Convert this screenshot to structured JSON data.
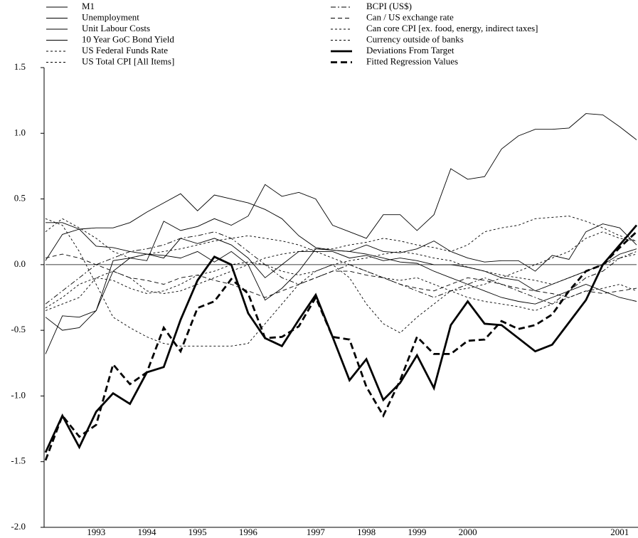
{
  "chart_data": {
    "type": "line",
    "categories": [
      null,
      null,
      null,
      "1993",
      null,
      null,
      "1994",
      null,
      null,
      "1995",
      null,
      null,
      "1996",
      null,
      null,
      null,
      "1997",
      null,
      null,
      "1998",
      null,
      null,
      "1999",
      null,
      null,
      "2000",
      null,
      null,
      null,
      null,
      null,
      null,
      null,
      null,
      "2001",
      null
    ],
    "ylim": [
      -2,
      1.5
    ],
    "yticks": [
      {
        "value": -2,
        "label": "-2.0"
      },
      -1.5,
      {
        "value": -1,
        "label": "-1.0"
      },
      -0.5,
      {
        "value": 0,
        "label": "0.0"
      },
      0.5,
      {
        "value": 1,
        "label": "1.0"
      },
      1.5
    ],
    "zero_line": true,
    "legend": "top",
    "series": [
      {
        "name": "M1",
        "color": "#000000",
        "style": "solid",
        "values": [
          -0.68,
          -0.39,
          -0.4,
          -0.35,
          -0.05,
          0.05,
          0.03,
          0.33,
          0.26,
          0.29,
          0.35,
          0.3,
          0.37,
          0.61,
          0.52,
          0.55,
          0.5,
          0.3,
          0.25,
          0.2,
          0.38,
          0.38,
          0.26,
          0.38,
          0.73,
          0.65,
          0.67,
          0.88,
          0.98,
          1.03,
          1.03,
          1.04,
          1.15,
          1.14,
          1.05,
          0.95
        ]
      },
      {
        "name": "Unemployment",
        "color": "#000000",
        "style": "solid",
        "values": [
          0.03,
          0.23,
          0.27,
          0.14,
          0.13,
          0.1,
          0.08,
          0.05,
          0.2,
          0.16,
          0.2,
          0.15,
          0.05,
          -0.1,
          0.0,
          0.1,
          0.1,
          0.1,
          0.05,
          0.07,
          0.03,
          0.05,
          0.03,
          0.0,
          0.0,
          -0.02,
          -0.05,
          -0.1,
          -0.12,
          -0.2,
          -0.15,
          -0.1,
          -0.05,
          0.0,
          0.08,
          0.12
        ]
      },
      {
        "name": "Unit Labour Costs",
        "color": "#000000",
        "style": "solid",
        "values": [
          0.32,
          0.32,
          0.27,
          0.28,
          0.28,
          0.32,
          0.4,
          0.47,
          0.54,
          0.41,
          0.53,
          0.5,
          0.47,
          0.42,
          0.35,
          0.22,
          0.13,
          0.11,
          0.1,
          0.08,
          0.05,
          0.02,
          0.01,
          -0.05,
          -0.1,
          -0.15,
          -0.2,
          -0.25,
          -0.28,
          -0.3,
          -0.25,
          -0.2,
          -0.15,
          -0.2,
          -0.25,
          -0.28
        ]
      },
      {
        "name": "10 Year GoC Bond Yield",
        "color": "#000000",
        "style": "solid",
        "values": [
          -0.4,
          -0.5,
          -0.48,
          -0.35,
          0.03,
          0.05,
          0.08,
          0.07,
          0.05,
          0.1,
          0.02,
          0.1,
          0.0,
          -0.27,
          -0.18,
          -0.05,
          0.12,
          0.11,
          0.1,
          0.15,
          0.1,
          0.09,
          0.12,
          0.18,
          0.1,
          0.05,
          0.02,
          0.03,
          0.03,
          -0.05,
          0.07,
          0.04,
          0.25,
          0.31,
          0.28,
          0.15
        ]
      },
      {
        "name": "US Federal Funds Rate",
        "color": "#000000",
        "style": "dotted",
        "values": [
          -0.35,
          -0.3,
          -0.25,
          -0.1,
          -0.05,
          -0.1,
          -0.2,
          -0.22,
          -0.2,
          -0.15,
          -0.1,
          -0.05,
          0.0,
          0.05,
          0.08,
          0.1,
          0.12,
          0.12,
          0.15,
          0.17,
          0.2,
          0.18,
          0.15,
          0.13,
          0.1,
          0.15,
          0.25,
          0.28,
          0.3,
          0.35,
          0.36,
          0.37,
          0.33,
          0.28,
          0.22,
          0.18
        ]
      },
      {
        "name": "US Total CPI [All Items]",
        "color": "#000000",
        "style": "dotted",
        "values": [
          0.35,
          0.3,
          0.1,
          -0.15,
          -0.4,
          -0.48,
          -0.55,
          -0.6,
          -0.62,
          -0.62,
          -0.62,
          -0.62,
          -0.6,
          -0.45,
          -0.3,
          -0.15,
          -0.05,
          0.0,
          -0.1,
          -0.3,
          -0.45,
          -0.52,
          -0.4,
          -0.3,
          -0.2,
          -0.18,
          -0.15,
          -0.1,
          -0.05,
          0.0,
          0.05,
          0.1,
          0.2,
          0.25,
          0.2,
          0.18
        ]
      },
      {
        "name": "BCPI (US$)",
        "color": "#000000",
        "style": "dash-dot",
        "values": [
          -0.3,
          -0.2,
          -0.1,
          0.0,
          0.05,
          0.1,
          0.12,
          0.15,
          0.2,
          0.22,
          0.25,
          0.2,
          0.1,
          0.0,
          -0.1,
          -0.15,
          -0.1,
          -0.05,
          0.0,
          -0.05,
          -0.1,
          -0.15,
          -0.2,
          -0.25,
          -0.2,
          -0.15,
          -0.1,
          -0.15,
          -0.2,
          -0.25,
          -0.3,
          -0.2,
          -0.1,
          -0.05,
          0.05,
          0.1
        ]
      },
      {
        "name": "Can / US exchange rate",
        "color": "#000000",
        "style": "dashed",
        "values": [
          0.05,
          0.08,
          0.05,
          0.0,
          -0.05,
          -0.1,
          -0.12,
          -0.15,
          -0.1,
          -0.08,
          -0.12,
          -0.15,
          -0.2,
          -0.25,
          -0.2,
          -0.15,
          -0.1,
          -0.05,
          -0.05,
          -0.08,
          -0.1,
          -0.15,
          -0.18,
          -0.2,
          -0.15,
          -0.1,
          -0.12,
          -0.15,
          -0.18,
          -0.2,
          -0.22,
          -0.25,
          -0.2,
          -0.22,
          -0.2,
          -0.18
        ]
      },
      {
        "name": "Can core CPI [ex. food, energy, indirect taxes]",
        "color": "#000000",
        "style": "dotted",
        "values": [
          0.25,
          0.35,
          0.28,
          0.2,
          0.1,
          0.05,
          0.08,
          0.1,
          0.12,
          0.15,
          0.18,
          0.2,
          0.22,
          0.2,
          0.18,
          0.15,
          0.1,
          0.05,
          0.0,
          -0.05,
          -0.1,
          -0.12,
          -0.1,
          -0.15,
          -0.2,
          -0.25,
          -0.28,
          -0.3,
          -0.32,
          -0.35,
          -0.3,
          -0.25,
          -0.2,
          -0.18,
          -0.15,
          -0.2
        ]
      },
      {
        "name": "Currency outside of banks",
        "color": "#000000",
        "style": "dotted",
        "values": [
          -0.33,
          -0.25,
          -0.15,
          -0.1,
          -0.12,
          -0.18,
          -0.22,
          -0.2,
          -0.15,
          -0.08,
          -0.05,
          0.0,
          0.02,
          0.0,
          -0.05,
          -0.08,
          -0.05,
          0.0,
          0.03,
          0.05,
          0.08,
          0.1,
          0.08,
          0.05,
          0.03,
          -0.02,
          -0.05,
          -0.08,
          -0.1,
          -0.12,
          -0.15,
          -0.1,
          -0.05,
          0.0,
          0.05,
          0.08
        ]
      },
      {
        "name": "Deviations From Target",
        "color": "#000000",
        "style": "thick-solid",
        "values": [
          -1.43,
          -1.15,
          -1.39,
          -1.12,
          -0.98,
          -1.06,
          -0.82,
          -0.78,
          -0.42,
          -0.12,
          0.06,
          0.0,
          -0.37,
          -0.56,
          -0.62,
          -0.42,
          -0.23,
          -0.55,
          -0.88,
          -0.72,
          -1.03,
          -0.9,
          -0.69,
          -0.94,
          -0.46,
          -0.28,
          -0.45,
          -0.46,
          -0.56,
          -0.66,
          -0.61,
          -0.44,
          -0.27,
          0.0,
          0.15,
          0.3
        ]
      },
      {
        "name": "Fitted Regression Values",
        "color": "#000000",
        "style": "thick-dashed",
        "values": [
          -1.49,
          -1.15,
          -1.31,
          -1.22,
          -0.76,
          -0.91,
          -0.82,
          -0.48,
          -0.66,
          -0.33,
          -0.28,
          -0.11,
          -0.22,
          -0.56,
          -0.55,
          -0.47,
          -0.25,
          -0.55,
          -0.57,
          -0.93,
          -1.15,
          -0.88,
          -0.55,
          -0.68,
          -0.68,
          -0.58,
          -0.57,
          -0.43,
          -0.49,
          -0.46,
          -0.38,
          -0.2,
          -0.05,
          0.0,
          0.13,
          0.25
        ]
      }
    ]
  }
}
